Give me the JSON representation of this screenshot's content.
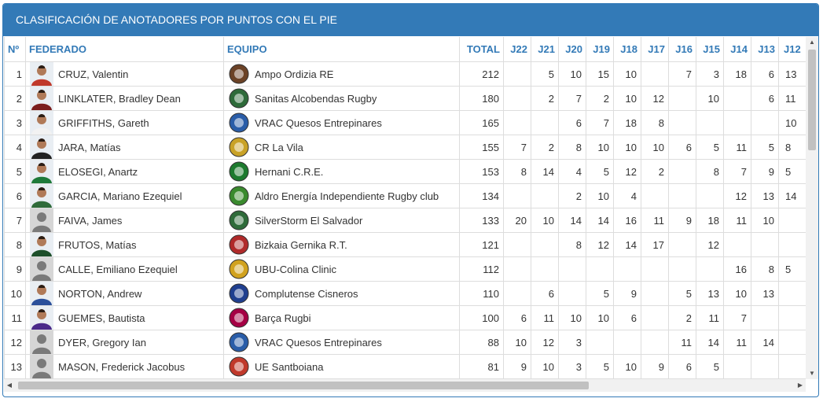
{
  "panel": {
    "title": "CLASIFICACIÓN DE ANOTADORES POR PUNTOS CON EL PIE"
  },
  "headers": {
    "idx": "Nº",
    "federado": "FEDERADO",
    "equipo": "EQUIPO",
    "total": "TOTAL",
    "rounds": [
      "J22",
      "J21",
      "J20",
      "J19",
      "J18",
      "J17",
      "J16",
      "J15",
      "J14",
      "J13",
      "J12"
    ]
  },
  "rows": [
    {
      "idx": "1",
      "name": "CRUZ, Valentin",
      "team": "Ampo Ordizia RE",
      "total": "212",
      "rounds": [
        "",
        "5",
        "10",
        "15",
        "10",
        "",
        "7",
        "3",
        "18",
        "6",
        "13"
      ],
      "photo": "player",
      "logo_color": "#6b4226"
    },
    {
      "idx": "2",
      "name": "LINKLATER, Bradley Dean",
      "team": "Sanitas Alcobendas Rugby",
      "total": "180",
      "rounds": [
        "",
        "2",
        "7",
        "2",
        "10",
        "12",
        "",
        "10",
        "",
        "6",
        "11"
      ],
      "photo": "player",
      "logo_color": "#2e6b3a"
    },
    {
      "idx": "3",
      "name": "GRIFFITHS, Gareth",
      "team": "VRAC Quesos Entrepinares",
      "total": "165",
      "rounds": [
        "",
        "",
        "6",
        "7",
        "18",
        "8",
        "",
        "",
        "",
        "",
        "10"
      ],
      "photo": "player",
      "logo_color": "#2a5da8"
    },
    {
      "idx": "4",
      "name": "JARA, Matías",
      "team": "CR La Vila",
      "total": "155",
      "rounds": [
        "7",
        "2",
        "8",
        "10",
        "10",
        "10",
        "6",
        "5",
        "11",
        "5",
        "8"
      ],
      "photo": "player",
      "logo_color": "#c9a227"
    },
    {
      "idx": "5",
      "name": "ELOSEGI, Anartz",
      "team": "Hernani C.R.E.",
      "total": "153",
      "rounds": [
        "8",
        "14",
        "4",
        "5",
        "12",
        "2",
        "",
        "8",
        "7",
        "9",
        "5"
      ],
      "photo": "player",
      "logo_color": "#1d7a2e"
    },
    {
      "idx": "6",
      "name": "GARCIA, Mariano Ezequiel",
      "team": "Aldro Energía Independiente Rugby club",
      "total": "134",
      "rounds": [
        "",
        "",
        "2",
        "10",
        "4",
        "",
        "",
        "",
        "12",
        "13",
        "14"
      ],
      "photo": "player",
      "logo_color": "#3a8a2e"
    },
    {
      "idx": "7",
      "name": "FAIVA, James",
      "team": "SilverStorm El Salvador",
      "total": "133",
      "rounds": [
        "20",
        "10",
        "14",
        "14",
        "16",
        "11",
        "9",
        "18",
        "11",
        "10",
        ""
      ],
      "photo": "silhouette",
      "logo_color": "#2f6b3a"
    },
    {
      "idx": "8",
      "name": "FRUTOS, Matías",
      "team": "Bizkaia Gernika R.T.",
      "total": "121",
      "rounds": [
        "",
        "",
        "8",
        "12",
        "14",
        "17",
        "",
        "12",
        "",
        "",
        ""
      ],
      "photo": "player",
      "logo_color": "#b02a2a"
    },
    {
      "idx": "9",
      "name": "CALLE, Emiliano Ezequiel",
      "team": "UBU-Colina Clinic",
      "total": "112",
      "rounds": [
        "",
        "",
        "",
        "",
        "",
        "",
        "",
        "",
        "16",
        "8",
        "5"
      ],
      "photo": "silhouette",
      "logo_color": "#d1a21f"
    },
    {
      "idx": "10",
      "name": "NORTON, Andrew",
      "team": "Complutense Cisneros",
      "total": "110",
      "rounds": [
        "",
        "6",
        "",
        "5",
        "9",
        "",
        "5",
        "13",
        "10",
        "13",
        ""
      ],
      "photo": "player",
      "logo_color": "#1f3f8f"
    },
    {
      "idx": "11",
      "name": "GUEMES, Bautista",
      "team": "Barça Rugbi",
      "total": "100",
      "rounds": [
        "6",
        "11",
        "10",
        "10",
        "6",
        "",
        "2",
        "11",
        "7",
        "",
        ""
      ],
      "photo": "player",
      "logo_color": "#a50044"
    },
    {
      "idx": "12",
      "name": "DYER, Gregory Ian",
      "team": "VRAC Quesos Entrepinares",
      "total": "88",
      "rounds": [
        "10",
        "12",
        "3",
        "",
        "",
        "",
        "11",
        "14",
        "11",
        "14",
        ""
      ],
      "photo": "silhouette",
      "logo_color": "#2a5da8"
    },
    {
      "idx": "13",
      "name": "MASON, Frederick Jacobus",
      "team": "UE Santboiana",
      "total": "81",
      "rounds": [
        "9",
        "10",
        "3",
        "5",
        "10",
        "9",
        "6",
        "5",
        "",
        "",
        ""
      ],
      "photo": "silhouette",
      "logo_color": "#c0392b"
    }
  ],
  "scrollbars": {
    "up_glyph": "▲",
    "down_glyph": "▼",
    "left_glyph": "◀",
    "right_glyph": "▶"
  }
}
